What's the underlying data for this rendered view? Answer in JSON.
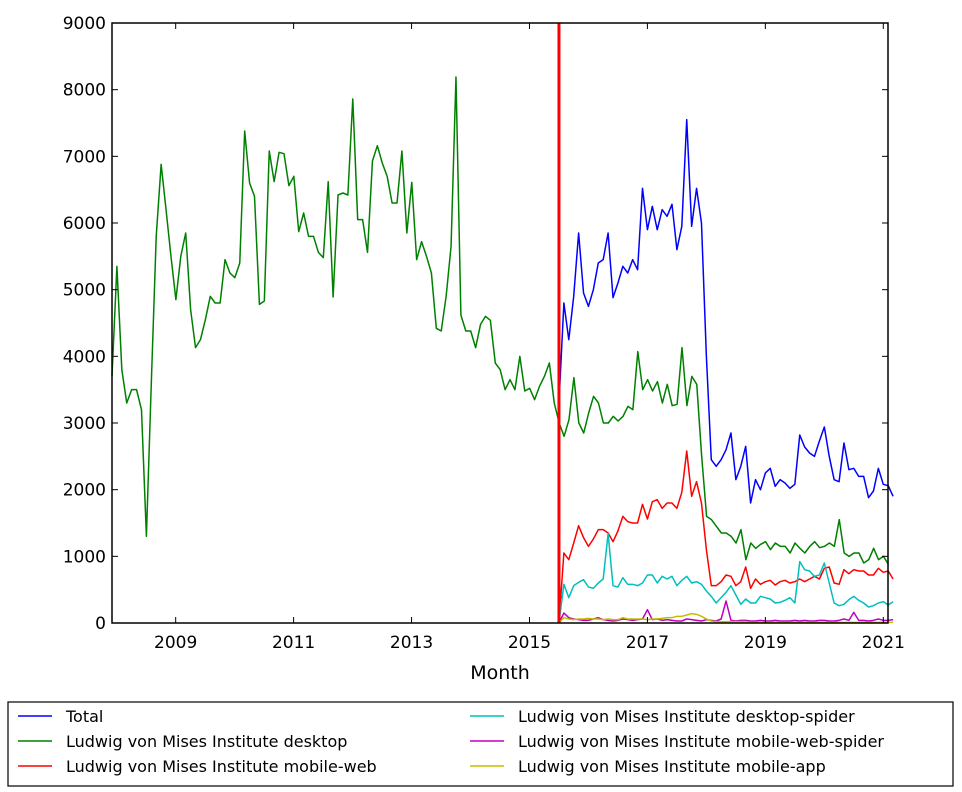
{
  "chart_data": {
    "type": "line",
    "title": "",
    "xlabel": "Month",
    "ylabel": "",
    "xlim": [
      2007.92,
      2021.08
    ],
    "ylim": [
      0,
      9000
    ],
    "x_ticks": [
      2009,
      2011,
      2013,
      2015,
      2017,
      2019,
      2021
    ],
    "x_tick_labels": [
      "2009",
      "2011",
      "2013",
      "2015",
      "2017",
      "2019",
      "2021"
    ],
    "y_ticks": [
      0,
      1000,
      2000,
      3000,
      4000,
      5000,
      6000,
      7000,
      8000,
      9000
    ],
    "y_tick_labels": [
      "0",
      "1000",
      "2000",
      "3000",
      "4000",
      "5000",
      "6000",
      "7000",
      "8000",
      "9000"
    ],
    "grid": false,
    "legend_position": "below",
    "vline": {
      "x": 2015.5,
      "color": "#ff0000"
    },
    "series": [
      {
        "name": "Total",
        "color": "#0000ff",
        "x_start": 2015.5,
        "values": [
          3300,
          4800,
          4250,
          4900,
          5850,
          4950,
          4750,
          5000,
          5400,
          5450,
          5850,
          4880,
          5100,
          5350,
          5250,
          5450,
          5300,
          6520,
          5900,
          6250,
          5900,
          6200,
          6100,
          6280,
          5600,
          5950,
          7550,
          5950,
          6520,
          6000,
          4000,
          2450,
          2350,
          2450,
          2600,
          2850,
          2150,
          2350,
          2650,
          1800,
          2150,
          2000,
          2250,
          2320,
          2050,
          2150,
          2100,
          2020,
          2080,
          2820,
          2640,
          2550,
          2500,
          2730,
          2940,
          2500,
          2150,
          2120,
          2700,
          2300,
          2320,
          2200,
          2200,
          1880,
          1980,
          2320,
          2080,
          2060,
          1900
        ]
      },
      {
        "name": "Ludwig von Mises Institute desktop",
        "color": "#008000",
        "x_start": 2007.92,
        "values": [
          3700,
          5350,
          3800,
          3300,
          3500,
          3500,
          3200,
          1300,
          3600,
          5800,
          6880,
          6200,
          5500,
          4850,
          5500,
          5850,
          4700,
          4130,
          4250,
          4550,
          4900,
          4800,
          4800,
          5450,
          5250,
          5180,
          5400,
          7380,
          6600,
          6400,
          4780,
          4830,
          7080,
          6620,
          7060,
          7040,
          6560,
          6700,
          5870,
          6150,
          5800,
          5800,
          5560,
          5480,
          6620,
          4890,
          6420,
          6450,
          6420,
          7860,
          6050,
          6050,
          5560,
          6930,
          7160,
          6900,
          6700,
          6300,
          6300,
          7080,
          5850,
          6610,
          5450,
          5720,
          5500,
          5250,
          4420,
          4380,
          4900,
          5650,
          8190,
          4620,
          4380,
          4380,
          4130,
          4480,
          4600,
          4540,
          3900,
          3800,
          3500,
          3650,
          3500,
          4000,
          3480,
          3520,
          3350,
          3550,
          3700,
          3900,
          3300,
          3000,
          2800,
          3050,
          3680,
          3000,
          2850,
          3150,
          3400,
          3300,
          3000,
          3000,
          3100,
          3030,
          3100,
          3250,
          3200,
          4070,
          3500,
          3650,
          3480,
          3620,
          3300,
          3580,
          3260,
          3280,
          4130,
          3260,
          3700,
          3580,
          2500,
          1600,
          1550,
          1450,
          1350,
          1350,
          1300,
          1200,
          1400,
          950,
          1200,
          1120,
          1180,
          1220,
          1100,
          1200,
          1150,
          1150,
          1050,
          1200,
          1120,
          1050,
          1150,
          1220,
          1130,
          1150,
          1200,
          1150,
          1550,
          1050,
          1000,
          1050,
          1050,
          900,
          950,
          1120,
          950,
          1000,
          880
        ]
      },
      {
        "name": "Ludwig von Mises Institute mobile-web",
        "color": "#ff0000",
        "x_start": 2015.5,
        "values": [
          0,
          1050,
          950,
          1200,
          1460,
          1280,
          1150,
          1260,
          1400,
          1400,
          1350,
          1220,
          1380,
          1600,
          1520,
          1500,
          1500,
          1780,
          1560,
          1820,
          1850,
          1720,
          1800,
          1800,
          1720,
          1960,
          2580,
          1900,
          2120,
          1800,
          1100,
          560,
          560,
          620,
          720,
          700,
          560,
          620,
          840,
          520,
          660,
          580,
          620,
          640,
          570,
          620,
          640,
          600,
          620,
          660,
          620,
          660,
          700,
          660,
          820,
          840,
          600,
          580,
          800,
          740,
          800,
          780,
          780,
          720,
          720,
          820,
          760,
          780,
          660
        ]
      },
      {
        "name": "Ludwig von Mises Institute desktop-spider",
        "color": "#00bfbf",
        "x_start": 2015.5,
        "values": [
          0,
          580,
          380,
          560,
          610,
          650,
          540,
          520,
          600,
          660,
          1340,
          560,
          540,
          680,
          580,
          580,
          560,
          600,
          720,
          720,
          600,
          700,
          660,
          700,
          560,
          640,
          700,
          600,
          620,
          580,
          480,
          400,
          300,
          380,
          460,
          560,
          420,
          280,
          360,
          300,
          300,
          400,
          380,
          360,
          300,
          310,
          340,
          380,
          300,
          920,
          800,
          780,
          700,
          720,
          900,
          600,
          300,
          260,
          280,
          350,
          400,
          340,
          300,
          240,
          260,
          300,
          320,
          270,
          320
        ]
      },
      {
        "name": "Ludwig von Mises Institute mobile-web-spider",
        "color": "#bf00bf",
        "x_start": 2015.5,
        "values": [
          0,
          150,
          80,
          60,
          50,
          40,
          40,
          60,
          80,
          50,
          40,
          30,
          40,
          60,
          50,
          40,
          50,
          60,
          200,
          50,
          60,
          40,
          50,
          40,
          30,
          30,
          60,
          50,
          40,
          30,
          50,
          40,
          30,
          60,
          330,
          40,
          30,
          40,
          40,
          30,
          30,
          40,
          30,
          30,
          40,
          30,
          30,
          30,
          40,
          30,
          40,
          30,
          30,
          40,
          40,
          30,
          30,
          40,
          60,
          40,
          160,
          40,
          40,
          30,
          40,
          60,
          40,
          40,
          50
        ]
      },
      {
        "name": "Ludwig von Mises Institute mobile-app",
        "color": "#bfbf00",
        "x_start": 2015.5,
        "values": [
          0,
          80,
          60,
          50,
          60,
          60,
          70,
          60,
          60,
          50,
          60,
          50,
          50,
          80,
          60,
          60,
          60,
          60,
          50,
          60,
          60,
          70,
          80,
          80,
          100,
          100,
          120,
          140,
          130,
          100,
          60,
          30,
          20,
          20,
          20,
          20,
          20,
          20,
          20,
          10,
          10,
          10,
          10,
          10,
          10,
          10,
          10,
          10,
          10,
          10,
          10,
          10,
          10,
          10,
          10,
          10,
          10,
          10,
          10,
          10,
          10,
          10,
          10,
          10,
          10,
          10,
          10,
          10,
          10
        ]
      }
    ]
  }
}
